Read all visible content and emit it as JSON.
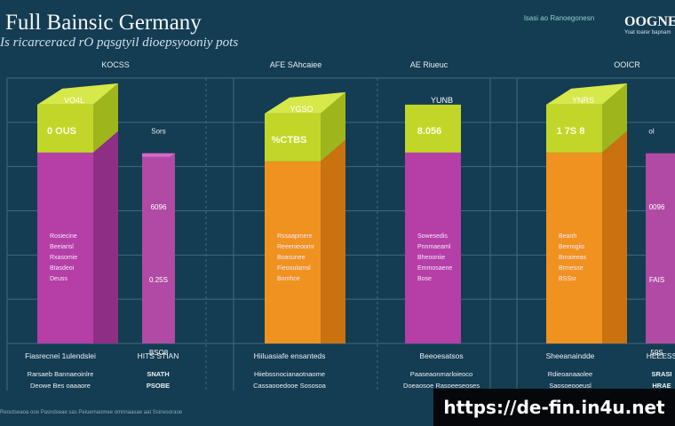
{
  "header": {
    "title": "Full Bainsic Germany",
    "subtitle": "Is ricarceracd rO pqsgtyil dioepsyooniy pots",
    "corner_text": "lsasi ao  Ranoegonesn",
    "brand": "OOGNE",
    "brand_sub": "Yoat toarer bapnam"
  },
  "chart_data": {
    "type": "bar",
    "categories": [
      "KOCSS",
      "AFE SAhcaiee",
      "AE Riueuc",
      "OOICR"
    ],
    "series": [
      {
        "name": "",
        "values": [
          270,
          260,
          270,
          270
        ]
      },
      {
        "name": "",
        "values": [
          215,
          0,
          0,
          215
        ]
      }
    ],
    "cap_labels": [
      "VO4L",
      "YGSO",
      "YUNB",
      "YNRS"
    ],
    "value_labels": [
      "0 OUS",
      "%CTBS",
      "8.056",
      "1 7S 8"
    ],
    "secondary_top_labels": [
      "Sors",
      "",
      "",
      "ol"
    ],
    "inner_labels": [
      [
        "Rosiecine",
        "Beeiarisl",
        "Rxasomie",
        "Btasdeoi",
        "Deuss"
      ],
      [
        "Rssaapmere",
        "Reeenieoomr",
        "Boasunee",
        "Fieooulamsl",
        "Bomhce"
      ],
      [
        "Sowesedis",
        "Pnnmaeaml",
        "Bheooniie",
        "Emmosaene",
        "Bose"
      ],
      [
        "Beanh",
        "Beerogiis",
        "Bmaieeas",
        "Brmesse",
        "BSSsr"
      ]
    ],
    "secondary_tick_labels": [
      [
        "6096",
        "0.25S",
        "BSO8"
      ],
      [
        "",
        "",
        ""
      ],
      [
        "",
        "",
        ""
      ],
      [
        "0096",
        "FAIS",
        "59S"
      ]
    ],
    "footer_labels": [
      [
        "Fiasrecnei 1ulendslei",
        "Rarsaeb Bannaeoinlre",
        "Deowe Bes oaaaore"
      ],
      [
        "HITS STIAN",
        "SNATH",
        "PSOBE"
      ],
      [
        "Hiiluasiafe ensanteds",
        "Hiiebssnocianaotnaome",
        "Cassaooedooe Sososoa"
      ],
      [
        "Beeoesatsos",
        "Paaseaonmarloieoco",
        "Doeaosoe Rasoeeseoses"
      ],
      [
        "Sheeanaindde",
        "Rdieoanaaolee",
        "Saosoeooeusl"
      ],
      [
        "HEEESS",
        "SRASI",
        "HRAE"
      ]
    ],
    "ylim": [
      0,
      300
    ],
    "grid": true,
    "colors": {
      "background": "#143c52",
      "grid": "#3e6b82",
      "cap": "#c2d62a",
      "cap_side": "#9fb51c",
      "magenta": "#b53fa6",
      "magenta_side": "#8e2f85",
      "orange": "#f0921f",
      "orange_side": "#c9720f",
      "secondary": "#b14aa4"
    },
    "series_palette": [
      "magenta",
      "orange",
      "magenta",
      "orange"
    ]
  },
  "footer_strip": "Reoutseaoa ooe Pasndseae sas Peiuemaomee omnnaasae aat Ssinesoraoe",
  "watermark": "https://de-fin.in4u.net"
}
